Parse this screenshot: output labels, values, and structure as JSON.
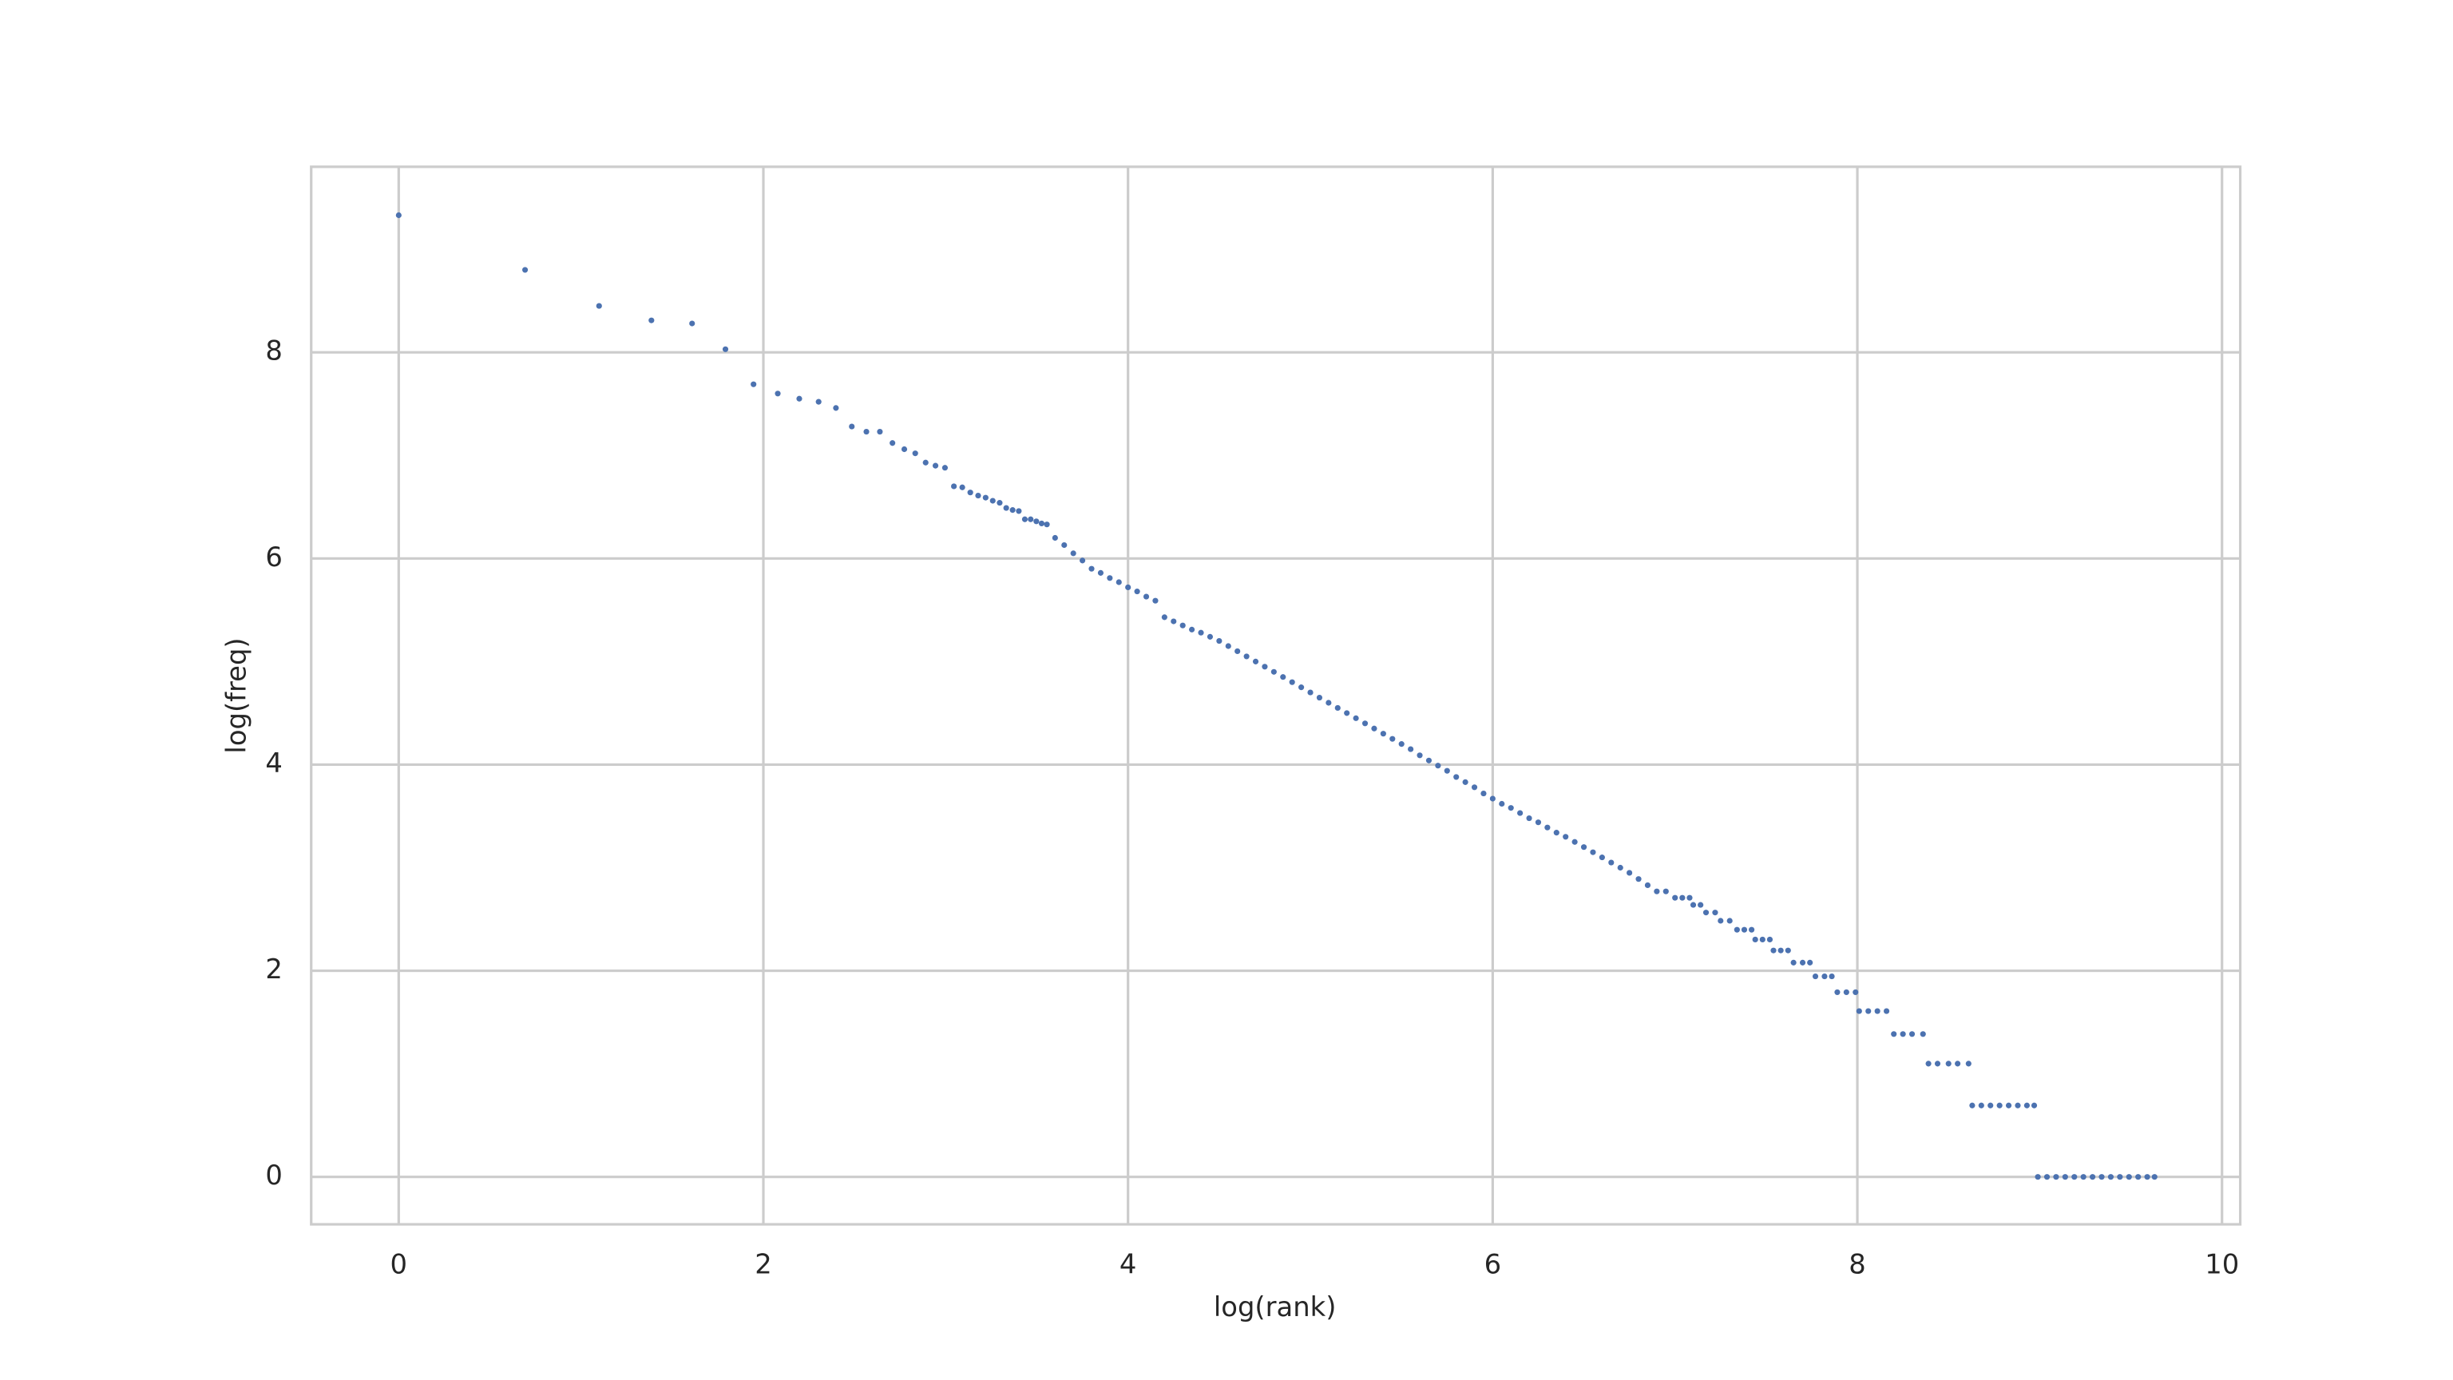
{
  "chart_data": {
    "type": "scatter",
    "xlabel": "log(rank)",
    "ylabel": "log(freq)",
    "color": "#4c72b0",
    "grid": true,
    "xlim": [
      -0.48,
      10.1
    ],
    "ylim": [
      -0.46,
      9.8
    ],
    "xticks": [
      0,
      2,
      4,
      6,
      8,
      10
    ],
    "yticks": [
      0,
      2,
      4,
      6,
      8
    ],
    "x": [
      0,
      0.693,
      1.099,
      1.386,
      1.609,
      1.792,
      1.946,
      2.079,
      2.197,
      2.303,
      2.398,
      2.485,
      2.565,
      2.639,
      2.708,
      2.773,
      2.833,
      2.89,
      2.944,
      2.996,
      3.045,
      3.091,
      3.135,
      3.178,
      3.219,
      3.258,
      3.296,
      3.332,
      3.367,
      3.401,
      3.434,
      3.466,
      3.497,
      3.526,
      3.555,
      3.6,
      3.65,
      3.7,
      3.75,
      3.8,
      3.85,
      3.9,
      3.95,
      4.0,
      4.05,
      4.1,
      4.15,
      4.2,
      4.25,
      4.3,
      4.35,
      4.4,
      4.45,
      4.5,
      4.55,
      4.6,
      4.65,
      4.7,
      4.75,
      4.8,
      4.85,
      4.9,
      4.95,
      5.0,
      5.05,
      5.1,
      5.15,
      5.2,
      5.25,
      5.3,
      5.35,
      5.4,
      5.45,
      5.5,
      5.55,
      5.6,
      5.65,
      5.7,
      5.75,
      5.8,
      5.85,
      5.9,
      5.95,
      6.0,
      6.05,
      6.1,
      6.15,
      6.2,
      6.25,
      6.3,
      6.35,
      6.4,
      6.45,
      6.5,
      6.55,
      6.6,
      6.65,
      6.7,
      6.75,
      6.8,
      6.85,
      6.9,
      6.95,
      7.0,
      7.04,
      7.08,
      7.1,
      7.14,
      7.17,
      7.22,
      7.25,
      7.3,
      7.34,
      7.38,
      7.42,
      7.44,
      7.48,
      7.52,
      7.54,
      7.58,
      7.62,
      7.65,
      7.7,
      7.74,
      7.77,
      7.82,
      7.86,
      7.89,
      7.94,
      7.99,
      8.01,
      8.06,
      8.11,
      8.16,
      8.2,
      8.25,
      8.3,
      8.36,
      8.39,
      8.44,
      8.5,
      8.55,
      8.61,
      8.63,
      8.68,
      8.73,
      8.78,
      8.83,
      8.88,
      8.93,
      8.97,
      8.99,
      9.04,
      9.09,
      9.14,
      9.19,
      9.24,
      9.29,
      9.34,
      9.39,
      9.44,
      9.49,
      9.54,
      9.59,
      9.63
    ],
    "values": [
      9.33,
      8.8,
      8.45,
      8.31,
      8.28,
      8.03,
      7.69,
      7.6,
      7.55,
      7.52,
      7.46,
      7.28,
      7.23,
      7.23,
      7.12,
      7.06,
      7.02,
      6.93,
      6.9,
      6.88,
      6.7,
      6.69,
      6.64,
      6.61,
      6.59,
      6.56,
      6.54,
      6.49,
      6.47,
      6.46,
      6.38,
      6.38,
      6.36,
      6.34,
      6.33,
      6.2,
      6.13,
      6.05,
      5.98,
      5.9,
      5.86,
      5.81,
      5.77,
      5.72,
      5.68,
      5.63,
      5.59,
      5.43,
      5.39,
      5.35,
      5.31,
      5.28,
      5.24,
      5.2,
      5.15,
      5.1,
      5.05,
      5.0,
      4.95,
      4.9,
      4.85,
      4.8,
      4.75,
      4.7,
      4.65,
      4.6,
      4.55,
      4.5,
      4.45,
      4.4,
      4.35,
      4.3,
      4.25,
      4.2,
      4.15,
      4.09,
      4.04,
      3.99,
      3.94,
      3.88,
      3.83,
      3.78,
      3.72,
      3.67,
      3.62,
      3.58,
      3.53,
      3.48,
      3.44,
      3.39,
      3.34,
      3.3,
      3.25,
      3.2,
      3.15,
      3.1,
      3.05,
      3.0,
      2.95,
      2.89,
      2.83,
      2.77,
      2.77,
      2.708,
      2.708,
      2.708,
      2.639,
      2.639,
      2.565,
      2.565,
      2.485,
      2.485,
      2.398,
      2.398,
      2.398,
      2.303,
      2.303,
      2.303,
      2.197,
      2.197,
      2.197,
      2.079,
      2.079,
      2.079,
      1.946,
      1.946,
      1.946,
      1.792,
      1.792,
      1.792,
      1.609,
      1.609,
      1.609,
      1.609,
      1.386,
      1.386,
      1.386,
      1.386,
      1.099,
      1.099,
      1.099,
      1.099,
      1.099,
      0.693,
      0.693,
      0.693,
      0.693,
      0.693,
      0.693,
      0.693,
      0.693,
      0,
      0,
      0,
      0,
      0,
      0,
      0,
      0,
      0,
      0,
      0,
      0,
      0,
      0
    ]
  }
}
